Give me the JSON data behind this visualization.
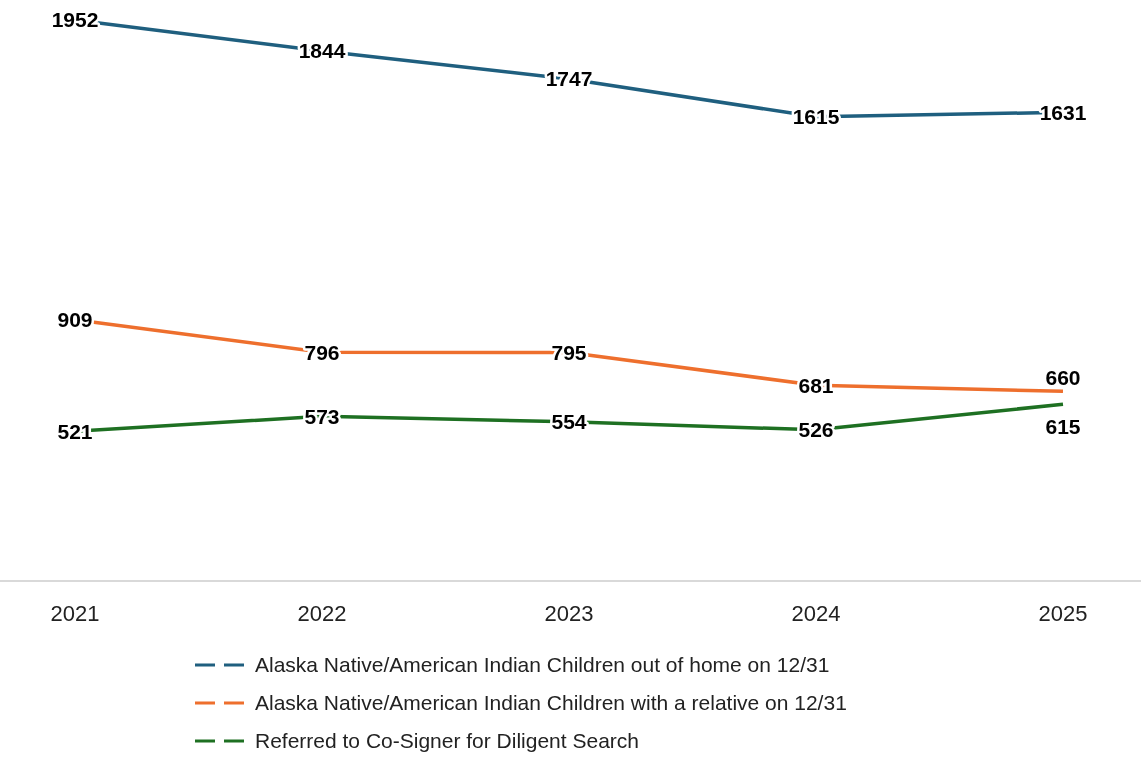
{
  "chart_data": {
    "type": "line",
    "categories": [
      "2021",
      "2022",
      "2023",
      "2024",
      "2025"
    ],
    "series": [
      {
        "name": "Alaska Native/American Indian Children out of home on 12/31",
        "color": "#1f5f7f",
        "values": [
          1952,
          1844,
          1747,
          1615,
          1631
        ]
      },
      {
        "name": "Alaska Native/American Indian Children with a relative on 12/31",
        "color": "#ee6f2d",
        "values": [
          909,
          796,
          795,
          681,
          660
        ]
      },
      {
        "name": "Referred to Co-Signer for Diligent Search",
        "color": "#1e7022",
        "values": [
          521,
          573,
          554,
          526,
          615
        ]
      }
    ],
    "data_labels": true,
    "legend": "bottom",
    "marker": "none",
    "line_style": "solid"
  }
}
